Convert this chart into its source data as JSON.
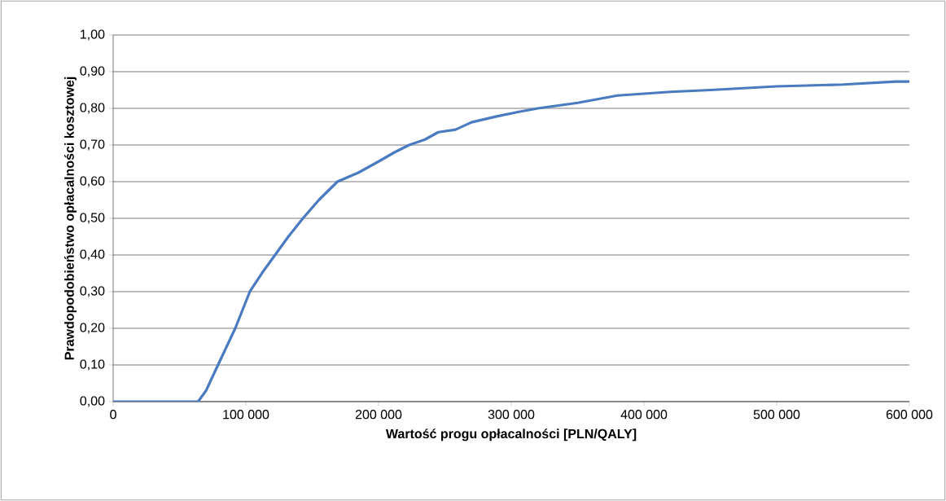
{
  "chart_data": {
    "type": "line",
    "xlabel": "Wartość progu opłacalności [PLN/QALY]",
    "ylabel": "Prawdopodobieństwo opłacalności kosztowej",
    "x": [
      0,
      30000,
      64000,
      70000,
      79000,
      92000,
      103000,
      112000,
      122000,
      132000,
      143000,
      155000,
      169000,
      185000,
      200000,
      212000,
      223000,
      235000,
      245000,
      258000,
      270000,
      289000,
      305000,
      320000,
      350000,
      380000,
      420000,
      450000,
      500000,
      550000,
      590000,
      600000
    ],
    "series": [
      {
        "color": "#4a7bc0",
        "values": [
          0,
          0,
          0,
          0.03,
          0.1,
          0.2,
          0.3,
          0.35,
          0.4,
          0.45,
          0.5,
          0.55,
          0.6,
          0.625,
          0.655,
          0.68,
          0.7,
          0.715,
          0.735,
          0.742,
          0.762,
          0.778,
          0.79,
          0.8,
          0.815,
          0.835,
          0.845,
          0.85,
          0.86,
          0.865,
          0.873,
          0.873
        ]
      }
    ],
    "xlim": [
      0,
      600000
    ],
    "ylim": [
      0,
      1
    ],
    "xticks": [
      {
        "value": 0,
        "label": "0"
      },
      {
        "value": 100000,
        "label": "100 000"
      },
      {
        "value": 200000,
        "label": "200 000"
      },
      {
        "value": 300000,
        "label": "300 000"
      },
      {
        "value": 400000,
        "label": "400 000"
      },
      {
        "value": 500000,
        "label": "500 000"
      },
      {
        "value": 600000,
        "label": "600 000"
      }
    ],
    "yticks": [
      {
        "value": 0,
        "label": "0,00"
      },
      {
        "value": 0.1,
        "label": "0,10"
      },
      {
        "value": 0.2,
        "label": "0,20"
      },
      {
        "value": 0.3,
        "label": "0,30"
      },
      {
        "value": 0.4,
        "label": "0,40"
      },
      {
        "value": 0.5,
        "label": "0,50"
      },
      {
        "value": 0.6,
        "label": "0,60"
      },
      {
        "value": 0.7,
        "label": "0,70"
      },
      {
        "value": 0.8,
        "label": "0,80"
      },
      {
        "value": 0.9,
        "label": "0,90"
      },
      {
        "value": 1,
        "label": "1,00"
      }
    ],
    "grid": "y",
    "marker": "none",
    "line_style": "solid"
  }
}
